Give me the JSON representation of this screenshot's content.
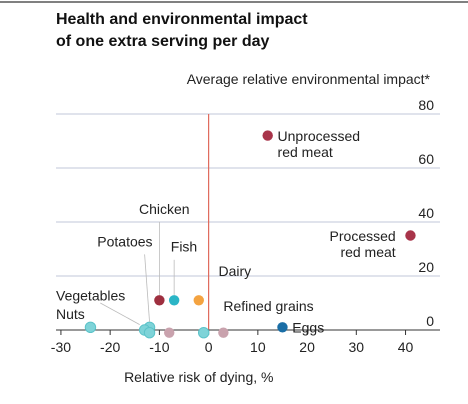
{
  "chart_data": {
    "type": "scatter",
    "title_lines": [
      "Health and environmental impact",
      "of one extra serving per day"
    ],
    "ylabel": "Average relative environmental impact*",
    "xlabel": "Relative risk of dying, %",
    "xlim": [
      -31,
      47
    ],
    "ylim": [
      0,
      80
    ],
    "xticks": [
      -30,
      -20,
      -10,
      0,
      10,
      20,
      30,
      40
    ],
    "xtick_labels": [
      "-30",
      "-20",
      "-10",
      "0",
      "10",
      "20",
      "30",
      "40"
    ],
    "yticks": [
      0,
      20,
      40,
      60,
      80
    ],
    "ytick_labels": [
      "0",
      "20",
      "40",
      "60",
      "80"
    ],
    "grid": true,
    "colors": {
      "red_meat": "#a8344a",
      "poultry": "#9e2f3f",
      "fish": "#2bb5c6",
      "dairy": "#f4a340",
      "plant": "#7ed3d8",
      "refined": "#c9a2ad",
      "eggs": "#1a6ea6",
      "zero_line": "#e06a5c",
      "grid": "#c2c7d8"
    },
    "points": [
      {
        "name": "Unprocessed red meat",
        "x": 12,
        "y": 72,
        "color_key": "red_meat"
      },
      {
        "name": "Processed red meat",
        "x": 41,
        "y": 35,
        "color_key": "red_meat"
      },
      {
        "name": "Chicken",
        "x": -10,
        "y": 11,
        "color_key": "poultry"
      },
      {
        "name": "Fish",
        "x": -7,
        "y": 11,
        "color_key": "fish"
      },
      {
        "name": "Dairy",
        "x": -2,
        "y": 11,
        "color_key": "dairy"
      },
      {
        "name": "Potatoes",
        "x": -12,
        "y": 1,
        "color_key": "plant"
      },
      {
        "name": "Vegetables",
        "x": -13,
        "y": 0,
        "color_key": "plant"
      },
      {
        "name": "Nuts",
        "x": -24,
        "y": 1,
        "color_key": "plant"
      },
      {
        "name": "Refined grains",
        "x": 3,
        "y": -1,
        "color_key": "refined"
      },
      {
        "name": "Eggs",
        "x": 15,
        "y": 1,
        "color_key": "eggs"
      },
      {
        "name": "",
        "x": -8,
        "y": -1,
        "color_key": "refined"
      },
      {
        "name": "",
        "x": -1,
        "y": -1,
        "color_key": "plant"
      },
      {
        "name": "",
        "x": -12,
        "y": -1,
        "color_key": "plant"
      }
    ],
    "labels": [
      {
        "lines": [
          "Unprocessed",
          "red meat"
        ],
        "x": 14,
        "y": 70,
        "anchor": "start"
      },
      {
        "lines": [
          "Processed",
          "red meat"
        ],
        "x": 38,
        "y": 33,
        "anchor": "end"
      },
      {
        "lines": [
          "Chicken"
        ],
        "x": -9,
        "y": 43,
        "anchor": "middle"
      },
      {
        "lines": [
          "Fish"
        ],
        "x": -5,
        "y": 29,
        "anchor": "middle"
      },
      {
        "lines": [
          "Dairy"
        ],
        "x": 2,
        "y": 20,
        "anchor": "start"
      },
      {
        "lines": [
          "Potatoes"
        ],
        "x": -17,
        "y": 31,
        "anchor": "middle"
      },
      {
        "lines": [
          "Vegetables"
        ],
        "x": -31,
        "y": 11,
        "anchor": "start"
      },
      {
        "lines": [
          "Nuts"
        ],
        "x": -31,
        "y": 4,
        "anchor": "start"
      },
      {
        "lines": [
          "Refined grains"
        ],
        "x": 3,
        "y": 7,
        "anchor": "start"
      },
      {
        "lines": [
          "Eggs"
        ],
        "x": 17,
        "y": -1,
        "anchor": "start"
      }
    ]
  }
}
